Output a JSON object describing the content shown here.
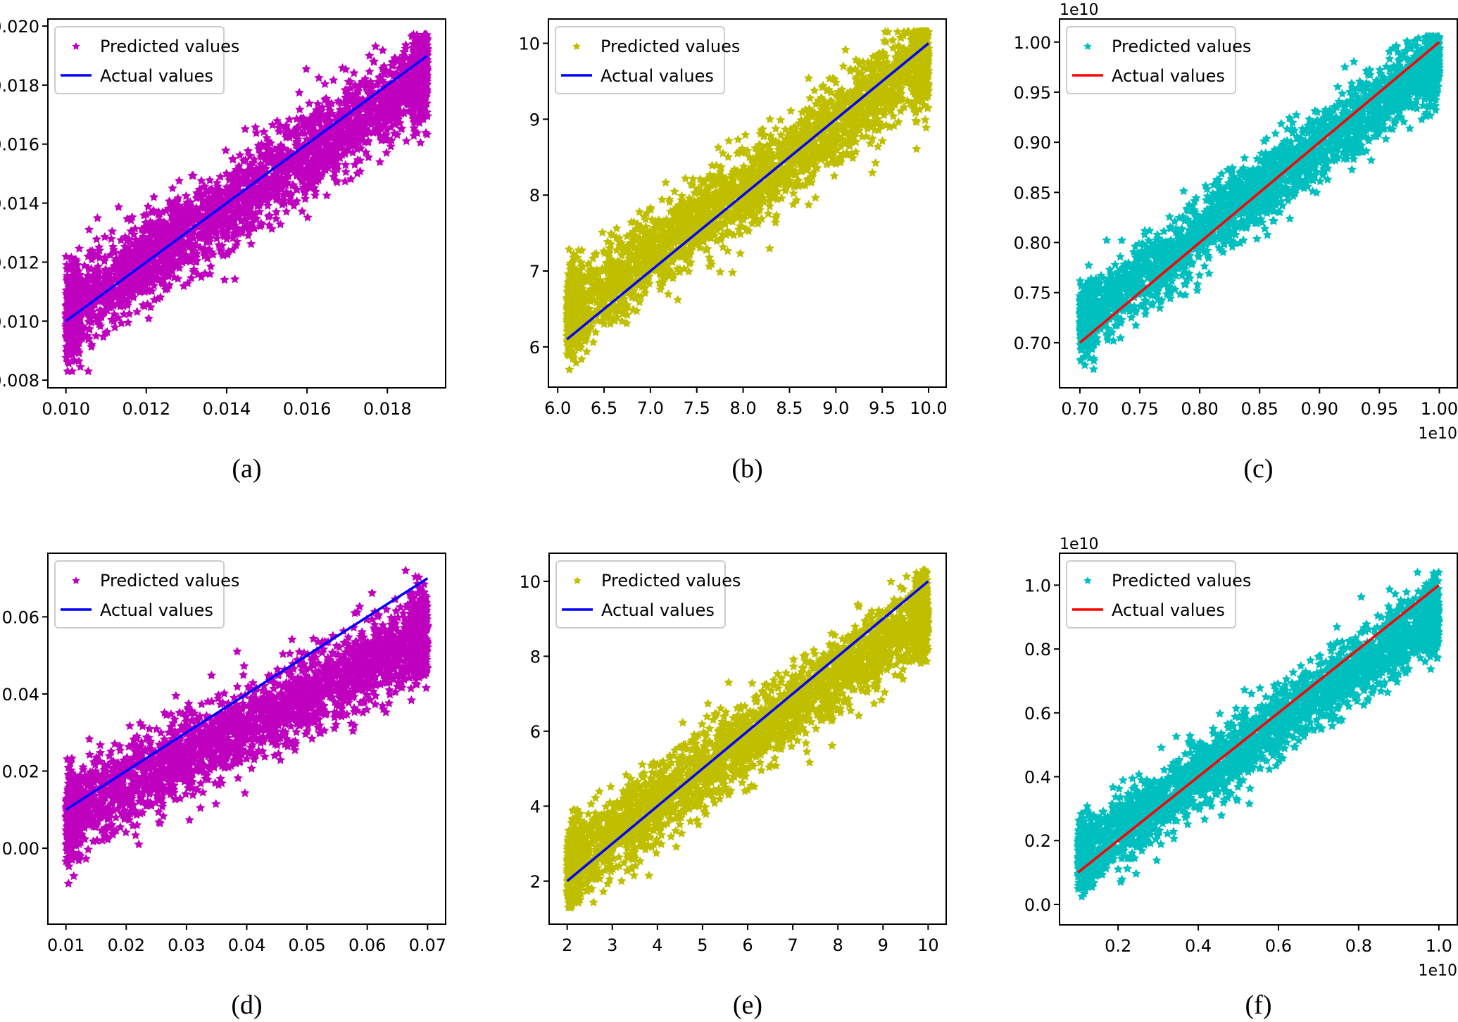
{
  "chart_data": [
    {
      "type": "scatter",
      "panel": "a",
      "caption": "(a)",
      "title": "",
      "xlabel": "",
      "ylabel": "",
      "xlim": [
        0.00955,
        0.01945
      ],
      "ylim": [
        0.00774,
        0.02024
      ],
      "x_ticks": [
        0.01,
        0.012,
        0.014,
        0.016,
        0.018
      ],
      "x_tick_labels": [
        "0.010",
        "0.012",
        "0.014",
        "0.016",
        "0.018"
      ],
      "y_ticks": [
        0.008,
        0.01,
        0.012,
        0.014,
        0.016,
        0.018,
        0.02
      ],
      "y_tick_labels": [
        "0.008",
        "0.010",
        "0.012",
        "0.014",
        "0.016",
        "0.018",
        "0.020"
      ],
      "offset_text_x": "",
      "offset_text_y": "",
      "legend_position": "top-left",
      "grid": false,
      "series": [
        {
          "name": "Predicted values",
          "kind": "scatter",
          "marker": "star",
          "color": "#bf00bf",
          "x_range": [
            0.01,
            0.019
          ],
          "slope": 0.92,
          "intercept_at_min": 0.0102,
          "noise_sd": 0.00075,
          "n_points": 3000,
          "y_min_observed": 0.0083,
          "y_max_observed": 0.0197
        },
        {
          "name": "Actual values",
          "kind": "line",
          "color": "#0000ff",
          "x": [
            0.01,
            0.019
          ],
          "y": [
            0.01,
            0.019
          ]
        }
      ]
    },
    {
      "type": "scatter",
      "panel": "b",
      "caption": "(b)",
      "title": "",
      "xlabel": "",
      "ylabel": "",
      "xlim": [
        5.9,
        10.19
      ],
      "ylim": [
        5.47,
        10.32
      ],
      "x_ticks": [
        6.0,
        6.5,
        7.0,
        7.5,
        8.0,
        8.5,
        9.0,
        9.5,
        10.0
      ],
      "x_tick_labels": [
        "6.0",
        "6.5",
        "7.0",
        "7.5",
        "8.0",
        "8.5",
        "9.0",
        "9.5",
        "10.0"
      ],
      "y_ticks": [
        6,
        7,
        8,
        9,
        10
      ],
      "y_tick_labels": [
        "6",
        "7",
        "8",
        "9",
        "10"
      ],
      "offset_text_x": "",
      "offset_text_y": "",
      "legend_position": "top-left",
      "grid": false,
      "series": [
        {
          "name": "Predicted values",
          "kind": "scatter",
          "marker": "star",
          "color": "#bfbf00",
          "x_range": [
            6.1,
            10.0
          ],
          "slope": 0.88,
          "intercept_at_min": 6.4,
          "noise_sd": 0.28,
          "n_points": 3000,
          "y_min_observed": 5.7,
          "y_max_observed": 10.15
        },
        {
          "name": "Actual values",
          "kind": "line",
          "color": "#0000ff",
          "x": [
            6.1,
            10.0
          ],
          "y": [
            6.1,
            10.0
          ]
        }
      ]
    },
    {
      "type": "scatter",
      "panel": "c",
      "caption": "(c)",
      "title": "",
      "xlabel": "",
      "ylabel": "",
      "xlim": [
        0.683,
        1.015
      ],
      "ylim": [
        0.655,
        1.023
      ],
      "x_ticks": [
        0.7,
        0.75,
        0.8,
        0.85,
        0.9,
        0.95,
        1.0
      ],
      "x_tick_labels": [
        "0.70",
        "0.75",
        "0.80",
        "0.85",
        "0.90",
        "0.95",
        "1.00"
      ],
      "y_ticks": [
        0.7,
        0.75,
        0.8,
        0.85,
        0.9,
        0.95,
        1.0
      ],
      "y_tick_labels": [
        "0.70",
        "0.75",
        "0.80",
        "0.85",
        "0.90",
        "0.95",
        "1.00"
      ],
      "offset_text_x": "1e10",
      "offset_text_y": "1e10",
      "legend_position": "top-left",
      "grid": false,
      "series": [
        {
          "name": "Predicted values",
          "kind": "scatter",
          "marker": "star",
          "color": "#00bfbf",
          "x_range": [
            0.7,
            1.0
          ],
          "slope": 0.88,
          "intercept_at_min": 0.72,
          "noise_sd": 0.018,
          "n_points": 3000,
          "y_min_observed": 0.667,
          "y_max_observed": 1.005
        },
        {
          "name": "Actual values",
          "kind": "line",
          "color": "#ff0000",
          "x": [
            0.7,
            1.0
          ],
          "y": [
            0.7,
            1.0
          ]
        }
      ]
    },
    {
      "type": "scatter",
      "panel": "d",
      "caption": "(d)",
      "title": "",
      "xlabel": "",
      "ylabel": "",
      "xlim": [
        0.007,
        0.073
      ],
      "ylim": [
        -0.0197,
        0.0765
      ],
      "x_ticks": [
        0.01,
        0.02,
        0.03,
        0.04,
        0.05,
        0.06,
        0.07
      ],
      "x_tick_labels": [
        "0.01",
        "0.02",
        "0.03",
        "0.04",
        "0.05",
        "0.06",
        "0.07"
      ],
      "y_ticks": [
        0.0,
        0.02,
        0.04,
        0.06
      ],
      "y_tick_labels": [
        "0.00",
        "0.02",
        "0.04",
        "0.06"
      ],
      "offset_text_x": "",
      "offset_text_y": "",
      "legend_position": "top-left",
      "grid": false,
      "series": [
        {
          "name": "Predicted values",
          "kind": "scatter",
          "marker": "star",
          "color": "#bf00bf",
          "x_range": [
            0.01,
            0.07
          ],
          "slope": 0.8,
          "intercept_at_min": 0.008,
          "noise_sd": 0.0055,
          "n_points": 3000,
          "y_min_observed": -0.012,
          "y_max_observed": 0.072
        },
        {
          "name": "Actual values",
          "kind": "line",
          "color": "#0000ff",
          "x": [
            0.01,
            0.07
          ],
          "y": [
            0.01,
            0.07
          ]
        }
      ]
    },
    {
      "type": "scatter",
      "panel": "e",
      "caption": "(e)",
      "title": "",
      "xlabel": "",
      "ylabel": "",
      "xlim": [
        1.6,
        10.4
      ],
      "ylim": [
        0.85,
        10.75
      ],
      "x_ticks": [
        2,
        3,
        4,
        5,
        6,
        7,
        8,
        9,
        10
      ],
      "x_tick_labels": [
        "2",
        "3",
        "4",
        "5",
        "6",
        "7",
        "8",
        "9",
        "10"
      ],
      "y_ticks": [
        2,
        4,
        6,
        8,
        10
      ],
      "y_tick_labels": [
        "2",
        "4",
        "6",
        "8",
        "10"
      ],
      "offset_text_x": "",
      "offset_text_y": "",
      "legend_position": "top-left",
      "grid": false,
      "series": [
        {
          "name": "Predicted values",
          "kind": "scatter",
          "marker": "star",
          "color": "#bfbf00",
          "x_range": [
            2.0,
            10.0
          ],
          "slope": 0.85,
          "intercept_at_min": 2.4,
          "noise_sd": 0.55,
          "n_points": 3000,
          "y_min_observed": 1.3,
          "y_max_observed": 10.3
        },
        {
          "name": "Actual values",
          "kind": "line",
          "color": "#0000ff",
          "x": [
            2.0,
            10.0
          ],
          "y": [
            2.0,
            10.0
          ]
        }
      ]
    },
    {
      "type": "scatter",
      "panel": "f",
      "caption": "(f)",
      "title": "",
      "xlabel": "",
      "ylabel": "",
      "xlim": [
        0.054,
        1.046
      ],
      "ylim": [
        -0.064,
        1.1
      ],
      "x_ticks": [
        0.2,
        0.4,
        0.6,
        0.8,
        1.0
      ],
      "x_tick_labels": [
        "0.2",
        "0.4",
        "0.6",
        "0.8",
        "1.0"
      ],
      "y_ticks": [
        0.0,
        0.2,
        0.4,
        0.6,
        0.8,
        1.0
      ],
      "y_tick_labels": [
        "0.0",
        "0.2",
        "0.4",
        "0.6",
        "0.8",
        "1.0"
      ],
      "offset_text_x": "1e10",
      "offset_text_y": "1e10",
      "legend_position": "top-left",
      "grid": false,
      "series": [
        {
          "name": "Predicted values",
          "kind": "scatter",
          "marker": "star",
          "color": "#00bfbf",
          "x_range": [
            0.1,
            1.0
          ],
          "slope": 0.86,
          "intercept_at_min": 0.14,
          "noise_sd": 0.055,
          "n_points": 3000,
          "y_min_observed": -0.01,
          "y_max_observed": 1.04
        },
        {
          "name": "Actual values",
          "kind": "line",
          "color": "#ff0000",
          "x": [
            0.1,
            1.0
          ],
          "y": [
            0.1,
            1.0
          ]
        }
      ]
    }
  ]
}
